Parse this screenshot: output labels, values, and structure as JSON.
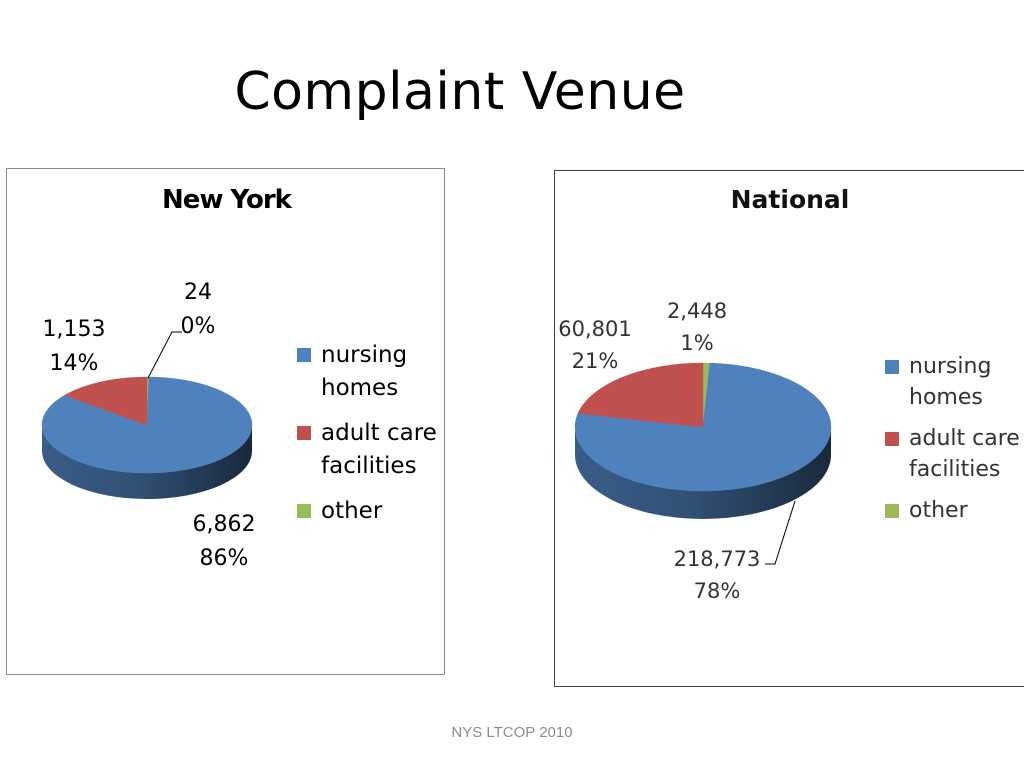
{
  "slide": {
    "title": "Complaint Venue",
    "footer": "NYS LTCOP 2010"
  },
  "colors": {
    "nursing_homes": "#4F81BD",
    "adult_care": "#C0504D",
    "other": "#9BBB59"
  },
  "chart_data": [
    {
      "type": "pie",
      "title": "New York",
      "categories": [
        "nursing homes",
        "adult care facilities",
        "other"
      ],
      "values": [
        6862,
        1153,
        24
      ],
      "value_labels": [
        "6,862",
        "1,153",
        "24"
      ],
      "percent_labels": [
        "86%",
        "14%",
        "0%"
      ],
      "legend": {
        "placement": "right",
        "items": [
          {
            "lines": [
              "nursing",
              "homes"
            ],
            "color": "#4F81BD"
          },
          {
            "lines": [
              "adult care",
              "facilities"
            ],
            "color": "#C0504D"
          },
          {
            "lines": [
              "other"
            ],
            "color": "#9BBB59"
          }
        ]
      }
    },
    {
      "type": "pie",
      "title": "National",
      "categories": [
        "nursing homes",
        "adult care facilities",
        "other"
      ],
      "values": [
        218773,
        60801,
        2448
      ],
      "value_labels": [
        "218,773",
        "60,801",
        "2,448"
      ],
      "percent_labels": [
        "78%",
        "21%",
        "1%"
      ],
      "legend": {
        "placement": "right",
        "items": [
          {
            "lines": [
              "nursing",
              "homes"
            ],
            "color": "#4F81BD"
          },
          {
            "lines": [
              "adult care",
              "facilities"
            ],
            "color": "#C0504D"
          },
          {
            "lines": [
              "other"
            ],
            "color": "#9BBB59"
          }
        ]
      }
    }
  ]
}
